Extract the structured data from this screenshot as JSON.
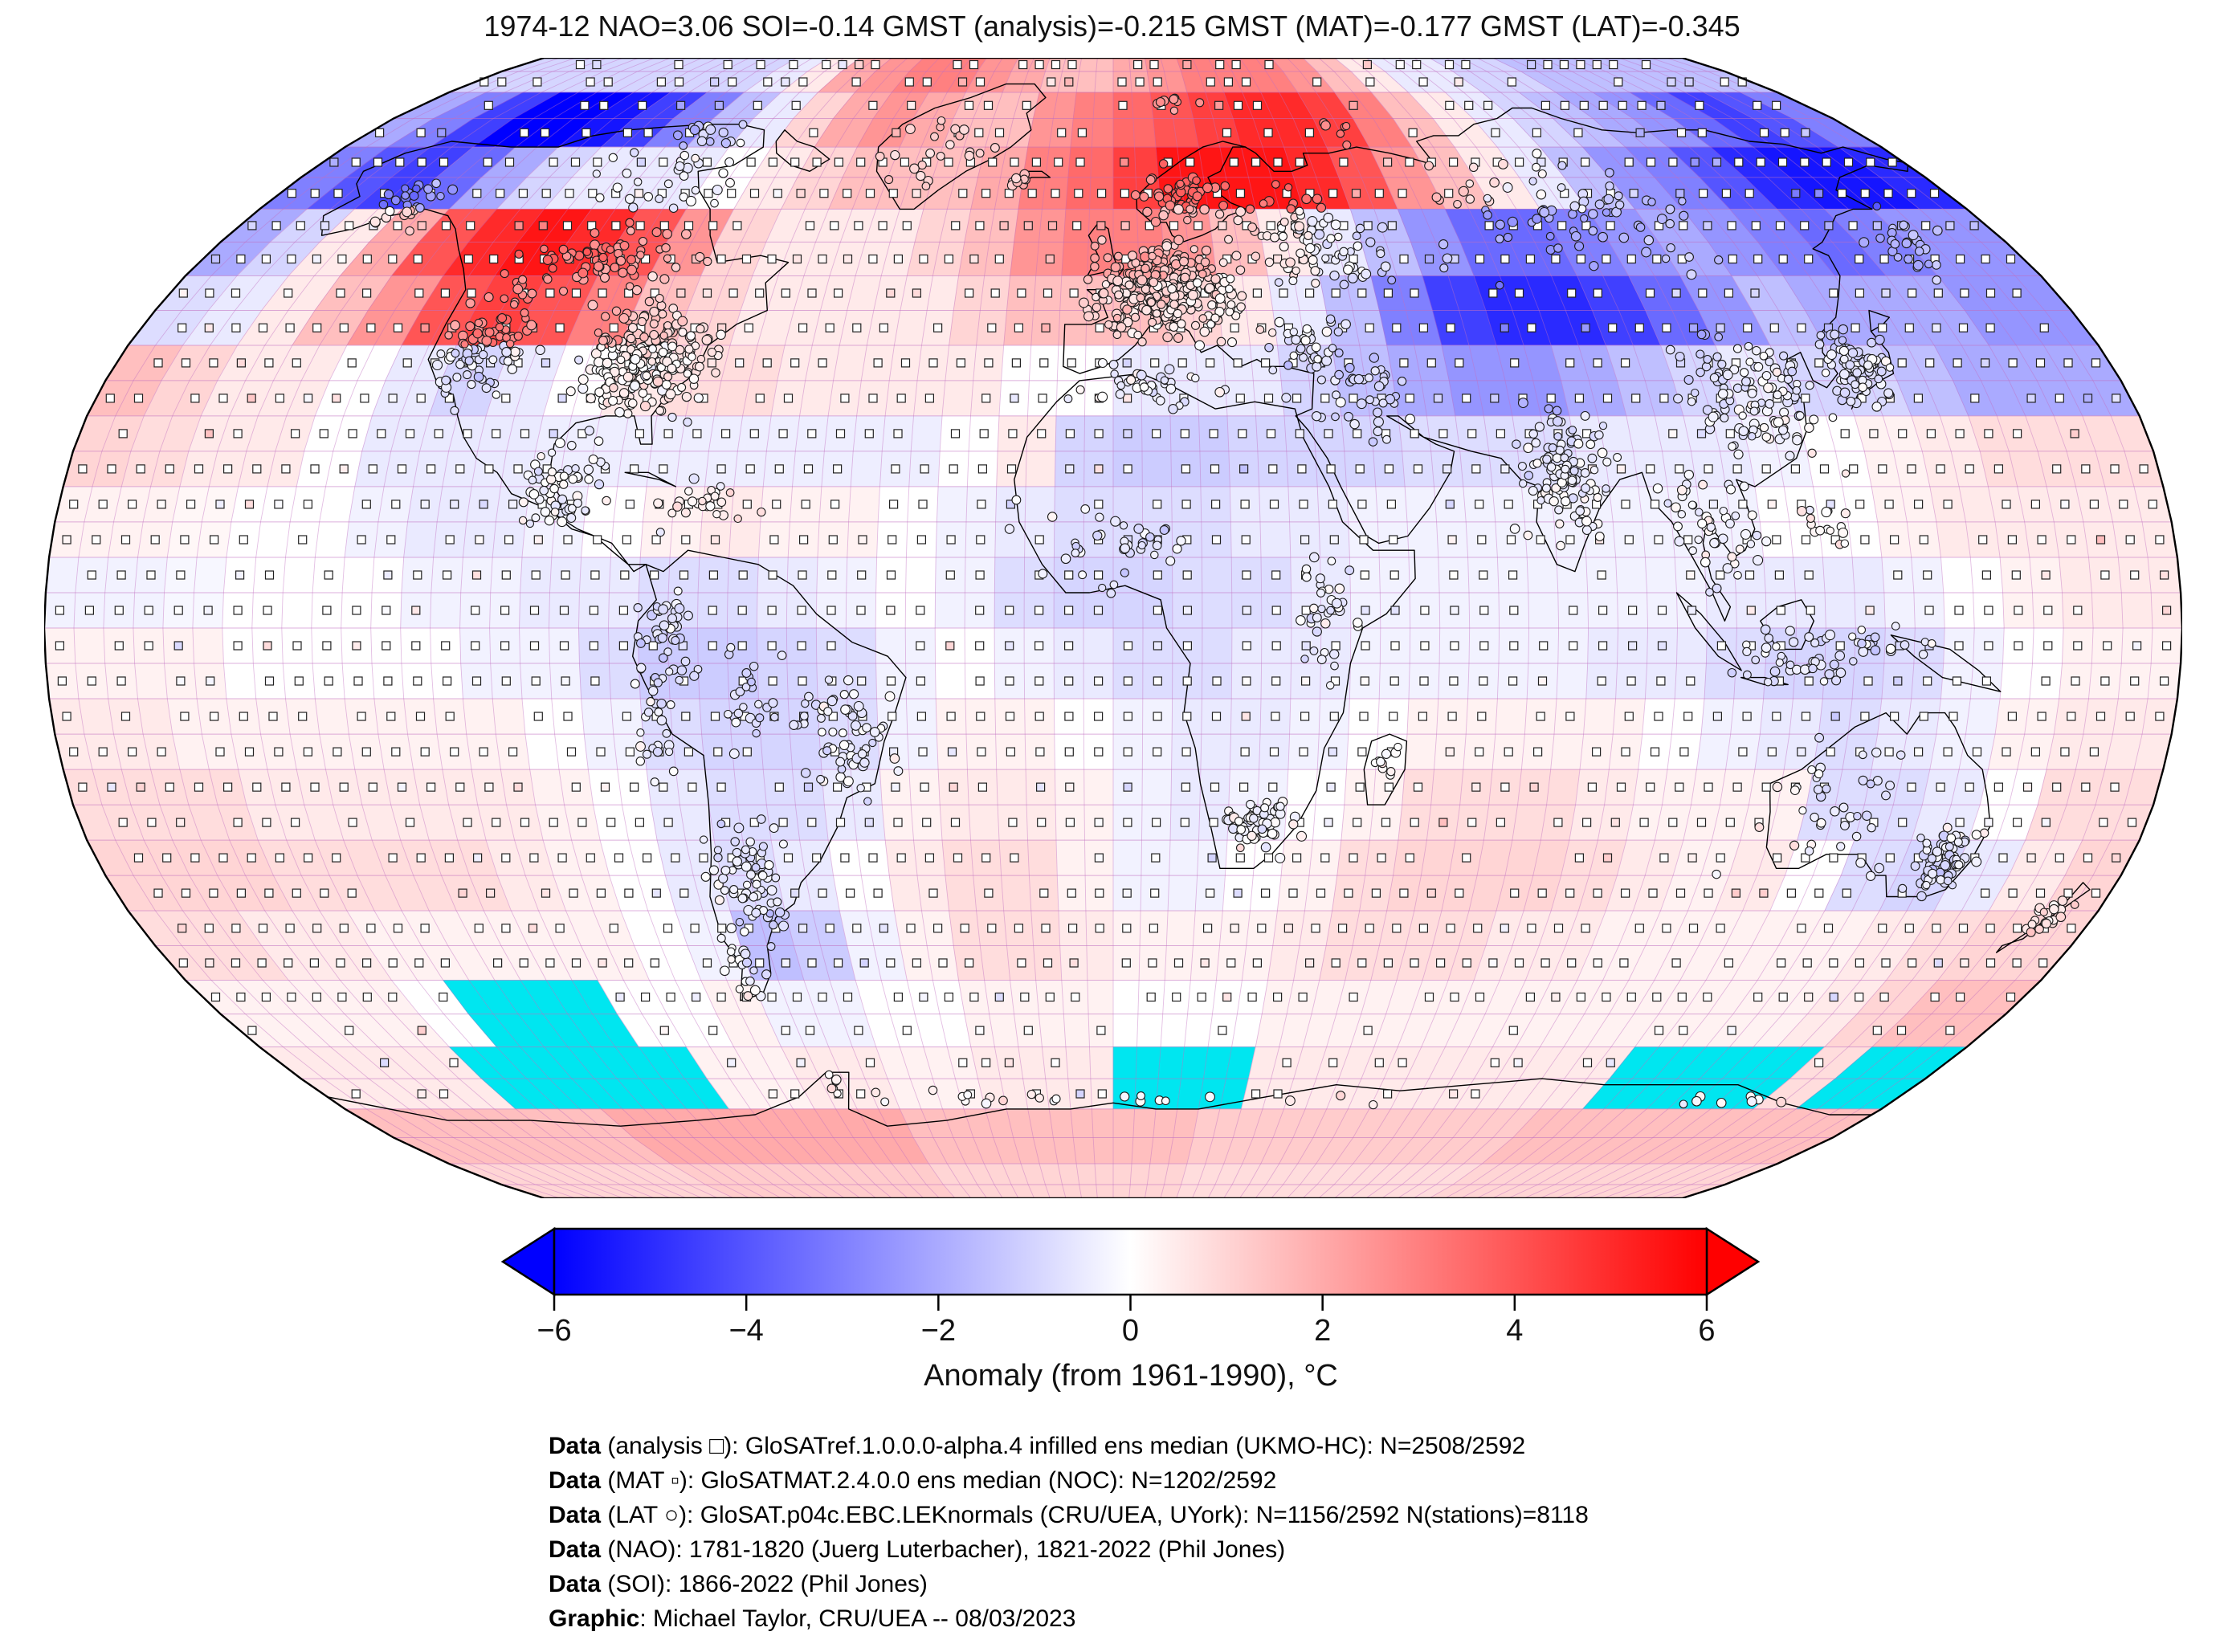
{
  "title": "1974-12 NAO=3.06 SOI=-0.14 GMST (analysis)=-0.215 GMST (MAT)=-0.177 GMST (LAT)=-0.345",
  "colorbar": {
    "label": "Anomaly (from 1961-1990), °C",
    "min": -6,
    "max": 6,
    "ticks": [
      {
        "value": -6,
        "label": "−6"
      },
      {
        "value": -4,
        "label": "−4"
      },
      {
        "value": -2,
        "label": "−2"
      },
      {
        "value": 0,
        "label": "0"
      },
      {
        "value": 2,
        "label": "2"
      },
      {
        "value": 4,
        "label": "4"
      },
      {
        "value": 6,
        "label": "6"
      }
    ],
    "color_min": "#0000FF",
    "color_mid": "#FFFFFF",
    "color_max": "#FF0000",
    "missing_color": "#00E6F0"
  },
  "footer": {
    "lines": [
      {
        "bold": "Data",
        "rest": " (analysis □): GloSATref.1.0.0.0-alpha.4 infilled ens median (UKMO-HC): N=2508/2592"
      },
      {
        "bold": "Data",
        "rest": " (MAT ▫): GloSATMAT.2.4.0.0 ens median (NOC): N=1202/2592"
      },
      {
        "bold": "Data",
        "rest": " (LAT ○): GloSAT.p04c.EBC.LEKnormals (CRU/UEA, UYork): N=1156/2592 N(stations)=8118"
      },
      {
        "bold": "Data",
        "rest": " (NAO): 1781-1820 (Juerg Luterbacher), 1821-2022 (Phil Jones)"
      },
      {
        "bold": "Data",
        "rest": " (SOI): 1866-2022 (Phil Jones)"
      },
      {
        "bold": "Graphic",
        "rest": ": Michael Taylor, CRU/UEA -- 08/03/2023"
      }
    ]
  },
  "chart_data": {
    "type": "heatmap",
    "projection": "robinson",
    "title": "1974-12 NAO=3.06 SOI=-0.14 GMST (analysis)=-0.215 GMST (MAT)=-0.177 GMST (LAT)=-0.345",
    "legend_label": "Anomaly (from 1961-1990), °C",
    "value_range": [
      -6,
      6
    ],
    "indices": {
      "NAO": 3.06,
      "SOI": -0.14,
      "GMST_analysis": -0.215,
      "GMST_MAT": -0.177,
      "GMST_LAT": -0.345
    },
    "month": "1974-12",
    "grid_deg": 10,
    "lon_start": -180,
    "lat_start": 90,
    "missing_token": "m",
    "marker_legend": {
      "analysis": "□",
      "mat": "▫",
      "lat_station": "○"
    },
    "graticule_deg": 5,
    "values": [
      [
        -1,
        -1,
        -1,
        -1,
        -1,
        -1,
        -1,
        -1,
        -0.5,
        0.5,
        2,
        2.5,
        3,
        3,
        2.5,
        2,
        1.5,
        1.5,
        2,
        2.5,
        3,
        3,
        3,
        2.5,
        1.5,
        0.5,
        -0.5,
        -0.5,
        -1,
        -1,
        -1.5,
        -1.5,
        -1.5,
        -1.5,
        -1.5,
        -1.5
      ],
      [
        -2,
        -3,
        -4.5,
        -6,
        -6,
        -5.5,
        -4.5,
        -3,
        -1.5,
        -0.5,
        1,
        2,
        2.5,
        2,
        1.5,
        1.5,
        2.5,
        3,
        3.5,
        4,
        4.5,
        5,
        5,
        4.5,
        3,
        1.5,
        0.5,
        -0.5,
        -1,
        -1.5,
        -2,
        -2.5,
        -3.5,
        -4.5,
        -4,
        -3
      ],
      [
        -3,
        -4,
        -4.5,
        -3.5,
        -2,
        -1,
        -0.5,
        -0.5,
        -0.5,
        0,
        0.5,
        1,
        1.5,
        1.5,
        1.5,
        2,
        3,
        3.5,
        4.5,
        5.5,
        5.5,
        5.5,
        5,
        4,
        2.5,
        1.5,
        0.5,
        -0.5,
        -1.5,
        -2.5,
        -3,
        -4,
        -5,
        -5.5,
        -5.5,
        -5
      ],
      [
        -2,
        -1,
        0.5,
        2,
        4,
        5,
        5.5,
        5,
        4,
        2.5,
        1,
        0.5,
        0.5,
        0.5,
        1,
        1.5,
        2.5,
        3,
        3,
        2.5,
        1.5,
        0.5,
        -0.5,
        -1.5,
        -2.5,
        -3.5,
        -3.5,
        -3,
        -2.5,
        -2,
        -2.5,
        -3,
        -3.5,
        -3,
        -2.5,
        -2.5
      ],
      [
        -0.8,
        -0.5,
        0.5,
        1.5,
        2.5,
        4,
        4.5,
        4,
        3,
        1.5,
        1,
        0.5,
        0.5,
        0.5,
        0.5,
        1,
        1.5,
        1.5,
        1.5,
        1,
        0.5,
        -0.5,
        -1.5,
        -3,
        -4.5,
        -5,
        -5,
        -4.5,
        -3.5,
        -2.5,
        -1.5,
        -2,
        -2,
        -2,
        -2.5,
        -2.5
      ],
      [
        1.5,
        1,
        0.5,
        0.5,
        0,
        -0.5,
        -1,
        -0.5,
        0,
        0.5,
        0.8,
        0.8,
        0.5,
        0.5,
        0.5,
        0.5,
        0,
        0,
        -0.5,
        -0.5,
        -0.5,
        -1,
        -1.5,
        -2,
        -2.5,
        -2.5,
        -2,
        -1.5,
        -1,
        -0.5,
        -1,
        -1,
        -1.5,
        -2,
        -2,
        -2
      ],
      [
        1,
        0.8,
        0.5,
        0.5,
        0,
        -0.5,
        -0.5,
        -0.5,
        -0.4,
        -0.4,
        -0.4,
        -0.4,
        -0.4,
        -0.4,
        -0.4,
        0,
        0.5,
        -1,
        -1.2,
        -1.2,
        -1,
        -1,
        -1,
        -0.8,
        -0.8,
        -0.8,
        -0.5,
        -0.5,
        -0.5,
        -0.3,
        0,
        0.3,
        0.5,
        0.8,
        0.8,
        0.8
      ],
      [
        0.3,
        0.3,
        0.2,
        0,
        0,
        -0.3,
        -0.5,
        -0.5,
        -0.3,
        0,
        0.3,
        0.5,
        0.3,
        0.3,
        0,
        -0.3,
        -0.5,
        -0.8,
        -0.8,
        -0.8,
        -0.5,
        -0.5,
        -0.3,
        -0.3,
        -0.3,
        -0.3,
        -0.3,
        -0.3,
        -0.3,
        0,
        0,
        0.3,
        0.5,
        0.5,
        0.5,
        0.5
      ],
      [
        -0.3,
        -0.3,
        -0.2,
        0,
        0,
        0,
        -0.3,
        -0.3,
        -0.5,
        -0.5,
        -0.8,
        -0.8,
        -0.5,
        -0.3,
        0,
        -0.3,
        -0.8,
        -1,
        -1,
        -0.8,
        -0.8,
        -0.5,
        -0.3,
        -0.3,
        -0.3,
        -0.3,
        -0.3,
        -0.3,
        -0.5,
        -0.5,
        -0.5,
        -0.3,
        0,
        0.3,
        0.5,
        0.5
      ],
      [
        0.3,
        0.3,
        0.3,
        0,
        0,
        0,
        0,
        -0.3,
        -0.3,
        -0.8,
        -1.2,
        -1.2,
        -1,
        -0.8,
        -0.3,
        0,
        -0.3,
        -0.5,
        -0.8,
        -0.8,
        -0.5,
        -0.5,
        -0.3,
        -0.3,
        -0.3,
        -0.3,
        -0.5,
        -0.5,
        -0.8,
        -1,
        -1,
        -0.8,
        -0.3,
        0,
        0.3,
        0.3
      ],
      [
        0.5,
        0.5,
        0.3,
        0.3,
        0.3,
        0.3,
        0.3,
        0.3,
        0,
        -0.3,
        -0.8,
        -1,
        -1,
        -0.8,
        -0.3,
        0.3,
        0.3,
        0,
        -0.3,
        -0.5,
        -0.5,
        -0.3,
        0,
        0.3,
        0.3,
        0.3,
        0.3,
        0,
        -0.3,
        -0.5,
        -0.8,
        -0.5,
        -0.3,
        0.3,
        0.5,
        0.5
      ],
      [
        0.8,
        0.8,
        0.8,
        0.5,
        0.5,
        0.5,
        0.5,
        0.5,
        0.3,
        0,
        -0.5,
        -0.8,
        -0.8,
        -0.5,
        0.3,
        0.5,
        0.5,
        0.3,
        -0.3,
        -0.5,
        -0.3,
        0,
        0.3,
        0.8,
        0.8,
        0.8,
        0.5,
        0.3,
        0.3,
        0.3,
        -0.8,
        -0.8,
        -0.5,
        0,
        0.8,
        0.8
      ],
      [
        1,
        1,
        1,
        0.8,
        0.8,
        0.8,
        0.8,
        0.5,
        0.3,
        0,
        -0.5,
        -0.8,
        -0.5,
        0,
        0.5,
        0.8,
        0.8,
        0.3,
        -0.3,
        -0.3,
        0,
        0.3,
        0.8,
        1,
        1,
        1,
        0.8,
        0.5,
        0.3,
        0.5,
        0,
        -0.8,
        -1,
        -0.5,
        0.5,
        1
      ],
      [
        0.8,
        0.8,
        0.5,
        0.5,
        0.3,
        0.3,
        0.3,
        0.3,
        0.3,
        0,
        -0.3,
        -1.5,
        -1.2,
        -0.3,
        0.3,
        0.8,
        0.8,
        0.5,
        0.3,
        0.3,
        0.3,
        0.5,
        0.8,
        0.8,
        0.8,
        0.5,
        0.5,
        0.3,
        0.3,
        0.3,
        0.3,
        0.3,
        0.5,
        0.8,
        1,
        1
      ],
      [
        0.3,
        0.3,
        0.3,
        0.3,
        0,
        "m",
        "m",
        "m",
        0,
        0,
        0.3,
        -0.3,
        -0.3,
        0,
        0,
        0.3,
        0.3,
        0.3,
        0,
        0,
        0,
        0.3,
        0.3,
        0.3,
        0.3,
        0.3,
        0.3,
        0.3,
        0.3,
        0.3,
        0.3,
        0.3,
        0.5,
        1,
        1.5,
        1.5
      ],
      [
        0.5,
        0.5,
        0.5,
        0.5,
        "m",
        "m",
        "m",
        "m",
        "m",
        0.3,
        0.3,
        0.5,
        0.5,
        0.3,
        0.3,
        0.5,
        0.5,
        0.5,
        "m",
        "m",
        "m",
        0.5,
        0.5,
        0.5,
        0.5,
        0.5,
        0.5,
        0.5,
        0.5,
        "m",
        "m",
        "m",
        "m",
        0.8,
        "m",
        "m"
      ],
      [
        1.5,
        1.5,
        1.5,
        1.5,
        1.5,
        1.5,
        2,
        2,
        2,
        2,
        2,
        2,
        2,
        1.5,
        1.5,
        1.5,
        1.5,
        1.5,
        1.5,
        1.5,
        1.2,
        1.2,
        1.2,
        1.2,
        1.2,
        1.2,
        1.2,
        1.2,
        1.5,
        1.5,
        1.5,
        1.5,
        1.5,
        1.5,
        1.5,
        1.5
      ],
      [
        1,
        1,
        1,
        1,
        1,
        1,
        1.2,
        1.2,
        1.2,
        1.2,
        1.2,
        1.2,
        1.2,
        1,
        1,
        1,
        1,
        1,
        1,
        1,
        0.8,
        0.8,
        0.8,
        0.8,
        0.8,
        0.8,
        0.8,
        0.8,
        1,
        1,
        1,
        1,
        1,
        1,
        1,
        1
      ]
    ]
  }
}
